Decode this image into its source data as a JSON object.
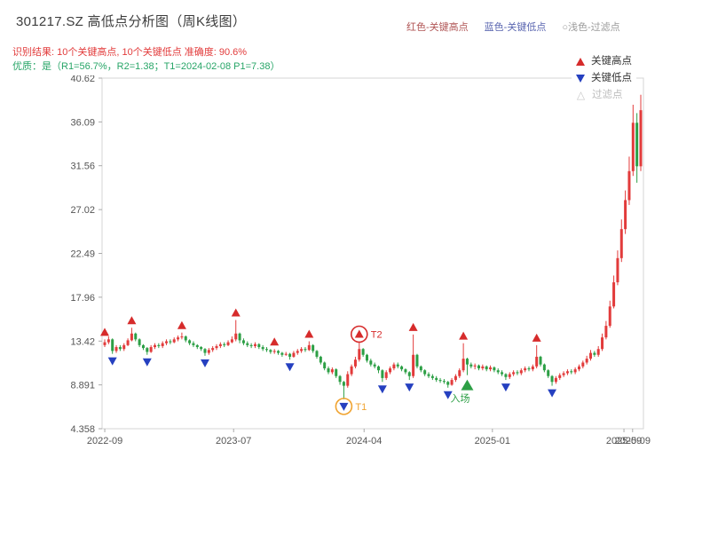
{
  "header": {
    "title": "301217.SZ 高低点分析图（周K线图）",
    "top_legend": [
      {
        "label": "红色-关键高点",
        "color": "#b05555"
      },
      {
        "label": "蓝色-关键低点",
        "color": "#5a66b0"
      },
      {
        "label": "○浅色-过滤点",
        "color": "#9a9a9a"
      }
    ],
    "result_line": "识别结果: 10个关键高点, 10个关键低点  准确度: 90.6%",
    "result_color": "#e23b3b",
    "quality_line": "优质：是（R1=56.7%，R2=1.38；T1=2024-02-08 P1=7.38）",
    "quality_color": "#27a567"
  },
  "chart_legend": {
    "items": [
      {
        "label": "关键高点",
        "type": "high"
      },
      {
        "label": "关键低点",
        "type": "low"
      },
      {
        "label": "过滤点",
        "type": "filtered"
      }
    ]
  },
  "chart_data": {
    "type": "candlestick",
    "title": "301217.SZ 高低点分析图（周K线图）",
    "y_min": 4.358,
    "y_max": 40.62,
    "y_ticks": [
      "40.62",
      "36.09",
      "31.56",
      "27.02",
      "22.49",
      "17.96",
      "13.42",
      "8.891",
      "4.358"
    ],
    "x_ticks": [
      {
        "label": "2022-09",
        "pos": 0.005
      },
      {
        "label": "2023-07",
        "pos": 0.243
      },
      {
        "label": "2024-04",
        "pos": 0.484
      },
      {
        "label": "2025-01",
        "pos": 0.721
      },
      {
        "label": "2025-09",
        "pos": 0.964
      },
      {
        "label": "2025-09",
        "pos": 0.98
      }
    ],
    "colors": {
      "up": "#e23b3b",
      "down": "#2c9f45",
      "high_marker": "#d62b2b",
      "low_marker": "#2540c0",
      "filtered_marker": "#c8c8c8",
      "entry": "#2c9f45",
      "t1_ring": "#f0a330",
      "t2_ring": "#d62b2b",
      "axis": "#d4d4d4",
      "tick_text": "#555555"
    },
    "candles": [
      [
        13.0,
        13.6,
        12.8,
        13.3
      ],
      [
        13.3,
        13.9,
        13.1,
        13.6
      ],
      [
        13.6,
        13.7,
        12.1,
        12.4
      ],
      [
        12.4,
        13.0,
        12.2,
        12.8
      ],
      [
        12.8,
        13.0,
        12.4,
        12.6
      ],
      [
        12.6,
        13.2,
        12.4,
        13.0
      ],
      [
        13.0,
        13.7,
        12.9,
        13.5
      ],
      [
        13.5,
        14.8,
        13.4,
        14.2
      ],
      [
        14.2,
        14.3,
        13.4,
        13.6
      ],
      [
        13.6,
        13.7,
        12.8,
        13.0
      ],
      [
        13.0,
        13.1,
        12.5,
        12.7
      ],
      [
        12.7,
        12.8,
        12.0,
        12.3
      ],
      [
        12.3,
        13.0,
        12.2,
        12.8
      ],
      [
        12.8,
        13.2,
        12.6,
        13.0
      ],
      [
        13.0,
        13.2,
        12.7,
        12.9
      ],
      [
        12.9,
        13.4,
        12.7,
        13.2
      ],
      [
        13.2,
        13.6,
        13.0,
        13.4
      ],
      [
        13.4,
        13.6,
        13.1,
        13.3
      ],
      [
        13.3,
        13.8,
        13.2,
        13.6
      ],
      [
        13.6,
        14.0,
        13.4,
        13.8
      ],
      [
        13.8,
        14.3,
        13.6,
        13.9
      ],
      [
        13.9,
        14.0,
        13.3,
        13.5
      ],
      [
        13.5,
        13.6,
        13.0,
        13.2
      ],
      [
        13.2,
        13.4,
        12.8,
        13.0
      ],
      [
        13.0,
        13.1,
        12.6,
        12.8
      ],
      [
        12.8,
        12.9,
        12.4,
        12.6
      ],
      [
        12.6,
        12.7,
        11.9,
        12.2
      ],
      [
        12.2,
        12.7,
        12.0,
        12.5
      ],
      [
        12.5,
        12.9,
        12.3,
        12.7
      ],
      [
        12.7,
        13.1,
        12.5,
        12.9
      ],
      [
        12.9,
        13.3,
        12.7,
        13.1
      ],
      [
        13.1,
        13.3,
        12.8,
        13.0
      ],
      [
        13.0,
        13.5,
        12.9,
        13.3
      ],
      [
        13.3,
        13.9,
        13.2,
        13.6
      ],
      [
        13.6,
        15.6,
        13.4,
        14.2
      ],
      [
        14.2,
        14.3,
        13.2,
        13.5
      ],
      [
        13.5,
        13.7,
        13.0,
        13.2
      ],
      [
        13.2,
        13.4,
        12.8,
        13.0
      ],
      [
        13.0,
        13.2,
        12.7,
        12.9
      ],
      [
        12.9,
        13.3,
        12.7,
        13.1
      ],
      [
        13.1,
        13.2,
        12.6,
        12.8
      ],
      [
        12.8,
        13.0,
        12.4,
        12.6
      ],
      [
        12.6,
        12.8,
        12.3,
        12.5
      ],
      [
        12.5,
        12.6,
        12.1,
        12.3
      ],
      [
        12.3,
        12.6,
        12.1,
        12.4
      ],
      [
        12.4,
        12.5,
        12.0,
        12.2
      ],
      [
        12.2,
        12.3,
        11.8,
        12.0
      ],
      [
        12.0,
        12.3,
        11.9,
        12.1
      ],
      [
        12.1,
        12.2,
        11.5,
        11.8
      ],
      [
        11.8,
        12.4,
        11.7,
        12.2
      ],
      [
        12.2,
        12.6,
        12.0,
        12.4
      ],
      [
        12.4,
        12.8,
        12.2,
        12.6
      ],
      [
        12.6,
        12.8,
        12.3,
        12.5
      ],
      [
        12.5,
        13.4,
        12.4,
        13.0
      ],
      [
        13.0,
        13.1,
        12.2,
        12.4
      ],
      [
        12.4,
        12.5,
        11.6,
        11.8
      ],
      [
        11.8,
        11.9,
        11.0,
        11.2
      ],
      [
        11.2,
        11.3,
        10.4,
        10.6
      ],
      [
        10.6,
        10.8,
        10.0,
        10.2
      ],
      [
        10.2,
        10.7,
        10.0,
        10.5
      ],
      [
        10.5,
        10.6,
        9.6,
        9.8
      ],
      [
        9.8,
        9.9,
        8.9,
        9.2
      ],
      [
        9.2,
        9.3,
        7.4,
        8.8
      ],
      [
        8.8,
        10.3,
        8.6,
        10.0
      ],
      [
        10.0,
        11.0,
        9.8,
        10.8
      ],
      [
        10.8,
        11.8,
        10.6,
        11.5
      ],
      [
        11.5,
        13.4,
        11.3,
        12.6
      ],
      [
        12.6,
        12.7,
        11.8,
        12.0
      ],
      [
        12.0,
        12.1,
        11.2,
        11.4
      ],
      [
        11.4,
        11.6,
        10.8,
        11.0
      ],
      [
        11.0,
        11.2,
        10.6,
        10.8
      ],
      [
        10.8,
        10.9,
        10.1,
        10.4
      ],
      [
        10.4,
        10.5,
        9.2,
        9.6
      ],
      [
        9.6,
        10.4,
        9.4,
        10.2
      ],
      [
        10.2,
        10.8,
        10.0,
        10.6
      ],
      [
        10.6,
        11.2,
        10.4,
        11.0
      ],
      [
        11.0,
        11.2,
        10.6,
        10.8
      ],
      [
        10.8,
        10.9,
        10.3,
        10.5
      ],
      [
        10.5,
        10.6,
        10.0,
        10.2
      ],
      [
        10.2,
        10.3,
        9.4,
        9.8
      ],
      [
        9.8,
        14.1,
        9.6,
        12.0
      ],
      [
        12.0,
        12.1,
        10.6,
        10.8
      ],
      [
        10.8,
        10.9,
        10.2,
        10.4
      ],
      [
        10.4,
        10.5,
        9.8,
        10.0
      ],
      [
        10.0,
        10.2,
        9.6,
        9.8
      ],
      [
        9.8,
        10.0,
        9.4,
        9.6
      ],
      [
        9.6,
        9.8,
        9.2,
        9.4
      ],
      [
        9.4,
        9.6,
        9.1,
        9.3
      ],
      [
        9.3,
        9.5,
        9.0,
        9.2
      ],
      [
        9.2,
        9.3,
        8.6,
        8.9
      ],
      [
        8.9,
        9.6,
        8.8,
        9.4
      ],
      [
        9.4,
        10.0,
        9.2,
        9.8
      ],
      [
        9.8,
        10.6,
        9.6,
        10.4
      ],
      [
        10.4,
        13.2,
        10.2,
        11.6
      ],
      [
        11.6,
        11.7,
        9.9,
        11.0
      ],
      [
        11.0,
        11.2,
        10.6,
        10.8
      ],
      [
        10.8,
        11.1,
        10.5,
        10.9
      ],
      [
        10.9,
        11.0,
        10.4,
        10.6
      ],
      [
        10.6,
        11.0,
        10.4,
        10.8
      ],
      [
        10.8,
        10.9,
        10.3,
        10.5
      ],
      [
        10.5,
        10.9,
        10.3,
        10.7
      ],
      [
        10.7,
        10.8,
        10.2,
        10.4
      ],
      [
        10.4,
        10.6,
        10.0,
        10.2
      ],
      [
        10.2,
        10.4,
        9.8,
        10.0
      ],
      [
        10.0,
        10.1,
        9.4,
        9.7
      ],
      [
        9.7,
        10.2,
        9.5,
        10.0
      ],
      [
        10.0,
        10.4,
        9.8,
        10.2
      ],
      [
        10.2,
        10.4,
        9.9,
        10.1
      ],
      [
        10.1,
        10.6,
        9.9,
        10.4
      ],
      [
        10.4,
        10.8,
        10.2,
        10.6
      ],
      [
        10.6,
        10.8,
        10.3,
        10.5
      ],
      [
        10.5,
        11.0,
        10.3,
        10.8
      ],
      [
        10.8,
        13.0,
        10.6,
        11.8
      ],
      [
        11.8,
        11.9,
        10.8,
        11.0
      ],
      [
        11.0,
        11.1,
        10.2,
        10.4
      ],
      [
        10.4,
        10.5,
        9.6,
        9.8
      ],
      [
        9.8,
        9.9,
        8.8,
        9.2
      ],
      [
        9.2,
        9.8,
        9.0,
        9.6
      ],
      [
        9.6,
        10.1,
        9.4,
        9.9
      ],
      [
        9.9,
        10.3,
        9.7,
        10.1
      ],
      [
        10.1,
        10.5,
        9.9,
        10.3
      ],
      [
        10.3,
        10.5,
        10.0,
        10.2
      ],
      [
        10.2,
        10.7,
        10.0,
        10.5
      ],
      [
        10.5,
        11.0,
        10.3,
        10.8
      ],
      [
        10.8,
        11.4,
        10.6,
        11.2
      ],
      [
        11.2,
        11.9,
        11.0,
        11.6
      ],
      [
        11.6,
        12.5,
        11.4,
        12.2
      ],
      [
        12.2,
        12.4,
        11.8,
        12.0
      ],
      [
        12.0,
        12.9,
        11.8,
        12.6
      ],
      [
        12.6,
        14.2,
        12.4,
        13.8
      ],
      [
        13.8,
        15.5,
        13.6,
        15.0
      ],
      [
        15.0,
        17.6,
        14.8,
        17.0
      ],
      [
        17.0,
        20.2,
        16.8,
        19.5
      ],
      [
        19.5,
        22.8,
        19.2,
        22.0
      ],
      [
        22.0,
        26.0,
        21.6,
        25.0
      ],
      [
        25.0,
        29.0,
        24.5,
        28.0
      ],
      [
        28.0,
        32.5,
        27.5,
        31.0
      ],
      [
        31.0,
        40.62,
        30.5,
        36.0
      ],
      [
        36.0,
        37.0,
        29.8,
        31.5
      ],
      [
        31.5,
        38.9,
        31.0,
        37.3
      ]
    ],
    "markers": {
      "highs": [
        0,
        7,
        20,
        34,
        44,
        53,
        66,
        80,
        93,
        112
      ],
      "lows": [
        2,
        11,
        26,
        48,
        62,
        72,
        79,
        89,
        104,
        116
      ],
      "annotations": [
        {
          "idx": 62,
          "label": "T1",
          "kind": "ring-low",
          "color": "#f0a330"
        },
        {
          "idx": 66,
          "label": "T2",
          "kind": "ring-high",
          "color": "#d62b2b"
        },
        {
          "idx": 94,
          "label": "入场",
          "kind": "entry",
          "color": "#2c9f45"
        }
      ]
    }
  }
}
